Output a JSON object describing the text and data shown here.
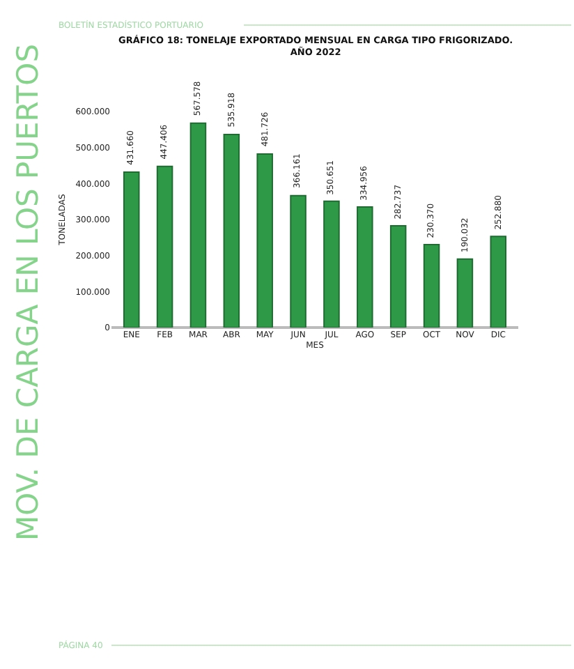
{
  "chart_data": {
    "type": "bar",
    "title": "GRÁFICO 18: TONELAJE EXPORTADO MENSUAL EN CARGA TIPO FRIGORIZADO.\nAÑO 2022",
    "xlabel": "MES",
    "ylabel": "TONELADAS",
    "categories": [
      "ENE",
      "FEB",
      "MAR",
      "ABR",
      "MAY",
      "JUN",
      "JUL",
      "AGO",
      "SEP",
      "OCT",
      "NOV",
      "DIC"
    ],
    "values": [
      431660,
      447406,
      567578,
      535918,
      481726,
      366161,
      350651,
      334956,
      282737,
      230370,
      190032,
      252880
    ],
    "value_labels": [
      "431.660",
      "447.406",
      "567.578",
      "535.918",
      "481.726",
      "366.161",
      "350.651",
      "334.956",
      "282.737",
      "230.370",
      "190.032",
      "252.880"
    ],
    "color": "#2e9a48",
    "ylim": [
      0,
      600000
    ],
    "yticks": [
      {
        "value": 0,
        "label": "0"
      },
      {
        "value": 100000,
        "label": "100.000"
      },
      {
        "value": 200000,
        "label": "200.000"
      },
      {
        "value": 300000,
        "label": "300.000"
      },
      {
        "value": 400000,
        "label": "400.000"
      },
      {
        "value": 500000,
        "label": "500.000"
      },
      {
        "value": 600000,
        "label": "600.000"
      }
    ],
    "grid": false,
    "legend": false,
    "annotations": [
      "BOLETÍN ESTADÍSTICO PORTUARIO",
      "MOV. DE CARGA EN LOS PUERTOS",
      "PÁGINA 40"
    ]
  }
}
